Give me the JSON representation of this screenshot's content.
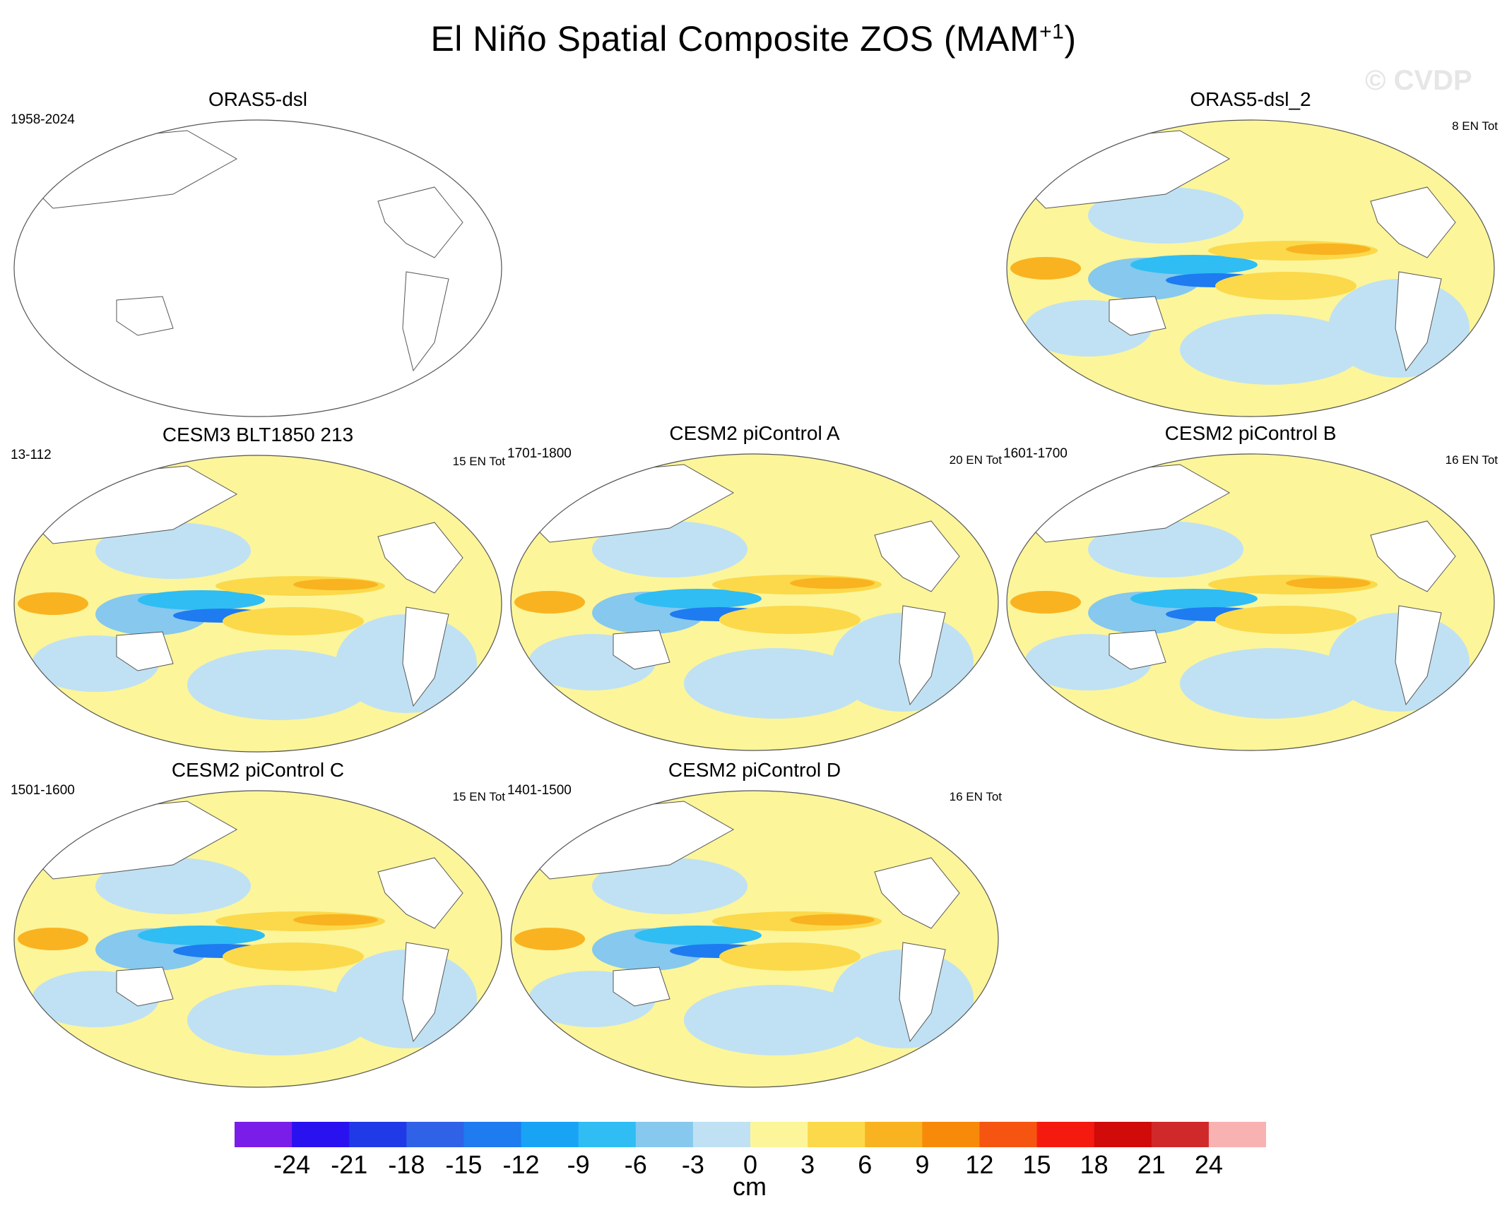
{
  "title": {
    "main": "El Niño Spatial Composite ZOS (MAM",
    "sup": "+1",
    "close": ")"
  },
  "watermark": "© CVDP",
  "panels": [
    {
      "title": "ORAS5-dsl",
      "left_label": "1958-2024",
      "right_label": "",
      "has_data": false
    },
    {
      "title": "ORAS5-dsl_2",
      "left_label": "",
      "right_label": "8 EN Tot",
      "has_data": true
    },
    {
      "title": "CESM3 BLT1850 213",
      "left_label": "13-112",
      "right_label": "15 EN Tot",
      "has_data": true
    },
    {
      "title": "CESM2 piControl A",
      "left_label": "1701-1800",
      "right_label": "20 EN Tot",
      "has_data": true
    },
    {
      "title": "CESM2 piControl B",
      "left_label": "1601-1700",
      "right_label": "16 EN Tot",
      "has_data": true
    },
    {
      "title": "CESM2 piControl C",
      "left_label": "1501-1600",
      "right_label": "15 EN Tot",
      "has_data": true
    },
    {
      "title": "CESM2 piControl D",
      "left_label": "1401-1500",
      "right_label": "16 EN Tot",
      "has_data": true
    }
  ],
  "colorbar": {
    "unit": "cm",
    "ticks": [
      "-24",
      "-21",
      "-18",
      "-15",
      "-12",
      "-9",
      "-6",
      "-3",
      "0",
      "3",
      "6",
      "9",
      "12",
      "15",
      "18",
      "21",
      "24"
    ],
    "colors": [
      "#7a1de8",
      "#2a12f0",
      "#1f3ae6",
      "#2f62e6",
      "#1e7bf0",
      "#18a3f5",
      "#2fbdf3",
      "#86c8ee",
      "#bfe1f3",
      "#fcf59a",
      "#fbd94a",
      "#f9b320",
      "#f88a0a",
      "#f55510",
      "#f51a10",
      "#d10a0a",
      "#d0292a",
      "#f8b2b2"
    ]
  }
}
